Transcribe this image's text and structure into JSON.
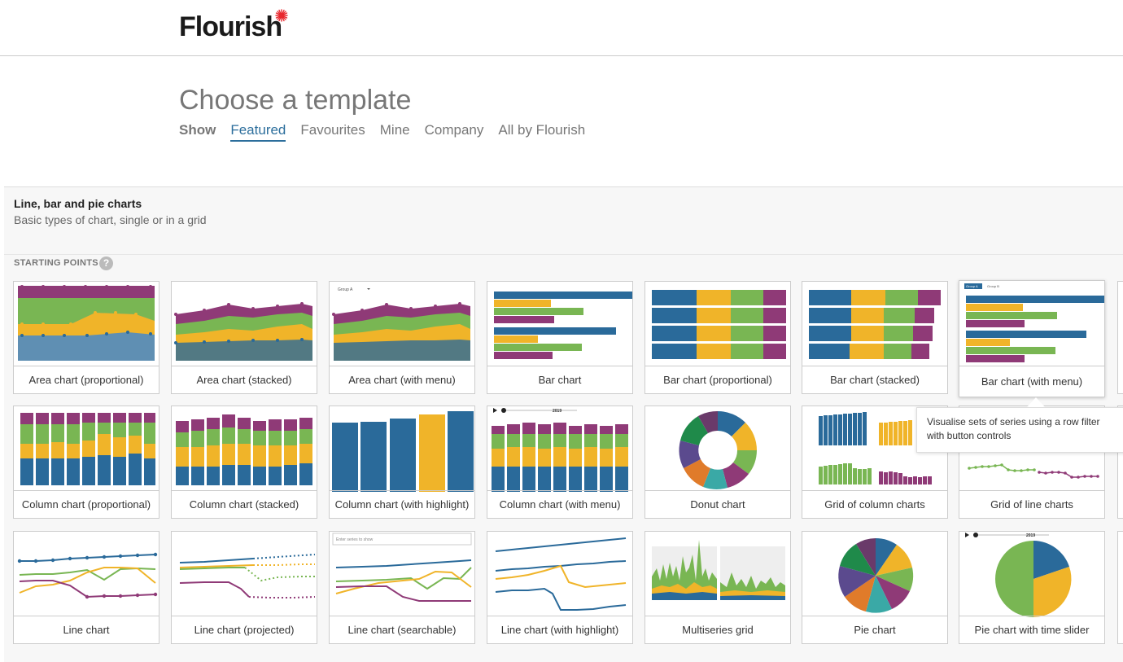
{
  "logo": "Flourish",
  "page": {
    "heading": "Choose a template"
  },
  "tabs": {
    "show_label": "Show",
    "items": [
      "Featured",
      "Favourites",
      "Mine",
      "Company",
      "All by Flourish"
    ],
    "active": "Featured"
  },
  "section": {
    "title": "Line, bar and pie charts",
    "subtitle": "Basic types of chart, single or in a grid",
    "starting_points_label": "STARTING POINTS",
    "help_glyph": "?"
  },
  "templates": [
    "Area chart (proportional)",
    "Area chart (stacked)",
    "Area chart (with menu)",
    "Bar chart",
    "Bar chart (proportional)",
    "Bar chart (stacked)",
    "Bar chart (with menu)",
    "Column chart (proportional)",
    "Column chart (stacked)",
    "Column chart (with highlight)",
    "Column chart (with menu)",
    "Donut chart",
    "Grid of column charts",
    "Grid of line charts",
    "Line chart",
    "Line chart (projected)",
    "Line chart (searchable)",
    "Line chart (with highlight)",
    "Multiseries grid",
    "Pie chart",
    "Pie chart with time slider"
  ],
  "thumb_text": {
    "menu_group_a": "Group A",
    "group_a": "Group A",
    "group_b": "Group B",
    "year": "2019",
    "search_placeholder": "Enter series to show"
  },
  "tooltip": "Visualise sets of series using a row filter with button controls",
  "colors": {
    "blue": "#2a6a9a",
    "yellow": "#f0b429",
    "green": "#79b653",
    "purple": "#8f3a77",
    "teal": "#3aa9a6",
    "orange": "#e07b2a",
    "navy": "#5b4a8e",
    "dark_green": "#1f8a4a",
    "link": "#2c6e9c"
  }
}
